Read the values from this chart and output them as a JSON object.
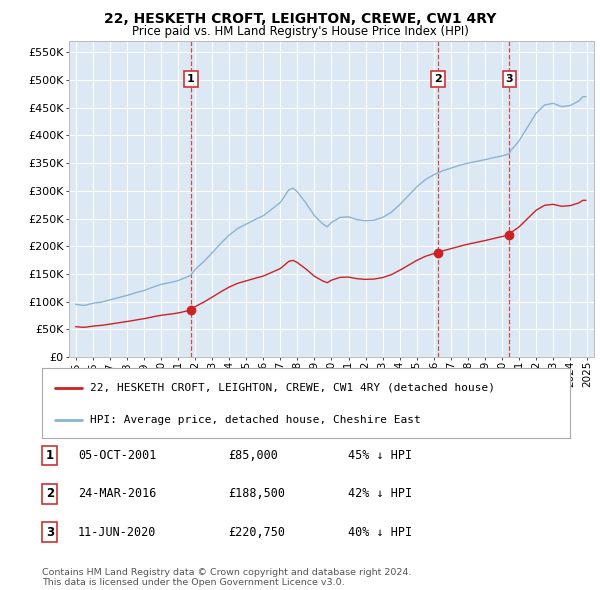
{
  "title": "22, HESKETH CROFT, LEIGHTON, CREWE, CW1 4RY",
  "subtitle": "Price paid vs. HM Land Registry's House Price Index (HPI)",
  "ylabel_ticks": [
    "£0",
    "£50K",
    "£100K",
    "£150K",
    "£200K",
    "£250K",
    "£300K",
    "£350K",
    "£400K",
    "£450K",
    "£500K",
    "£550K"
  ],
  "ytick_values": [
    0,
    50000,
    100000,
    150000,
    200000,
    250000,
    300000,
    350000,
    400000,
    450000,
    500000,
    550000
  ],
  "ylim": [
    0,
    570000
  ],
  "xlim_start": 1994.6,
  "xlim_end": 2025.4,
  "hpi_color": "#8ab4d4",
  "price_color": "#cc2222",
  "dashed_color": "#cc3333",
  "bg_color": "#dce9f5",
  "grid_color": "#ffffff",
  "legend_label_price": "22, HESKETH CROFT, LEIGHTON, CREWE, CW1 4RY (detached house)",
  "legend_label_hpi": "HPI: Average price, detached house, Cheshire East",
  "sale_dates": [
    2001.76,
    2016.23,
    2020.44
  ],
  "sale_prices": [
    85000,
    188500,
    220750
  ],
  "sale_labels": [
    "1",
    "2",
    "3"
  ],
  "sale_info": [
    [
      "1",
      "05-OCT-2001",
      "£85,000",
      "45% ↓ HPI"
    ],
    [
      "2",
      "24-MAR-2016",
      "£188,500",
      "42% ↓ HPI"
    ],
    [
      "3",
      "11-JUN-2020",
      "£220,750",
      "40% ↓ HPI"
    ]
  ],
  "footnote1": "Contains HM Land Registry data © Crown copyright and database right 2024.",
  "footnote2": "This data is licensed under the Open Government Licence v3.0."
}
